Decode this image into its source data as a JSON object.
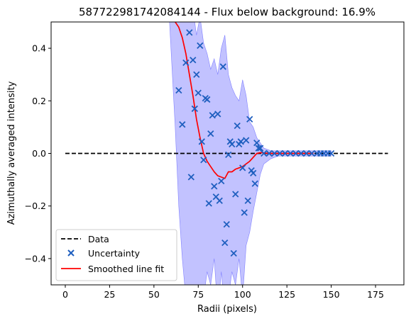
{
  "chart_data": {
    "type": "line",
    "title": "587722981742084144 - Flux below background: 16.9%",
    "xlabel": "Radii (pixels)",
    "ylabel": "Azimuthally averaged intensity",
    "xlim": [
      -8,
      191
    ],
    "ylim": [
      -0.5,
      0.5
    ],
    "x_ticks": [
      0,
      25,
      50,
      75,
      100,
      125,
      150,
      175
    ],
    "y_ticks": [
      -0.4,
      -0.2,
      0.0,
      0.2,
      0.4
    ],
    "y_tick_labels": [
      "−0.4",
      "−0.2",
      "0.0",
      "0.2",
      "0.4"
    ],
    "grid": false,
    "legend_position": "lower-left",
    "legend": [
      "Data",
      "Uncertainty",
      "Smoothed line fit"
    ],
    "colors": {
      "data": "#000000",
      "uncertainty": "#1f5fbf",
      "smoothed": "#ff0000",
      "band": "#b3b3ff"
    },
    "series": [
      {
        "name": "Data",
        "style": "dashed",
        "x": [
          0,
          182
        ],
        "y": [
          0,
          0
        ]
      },
      {
        "name": "Uncertainty",
        "style": "markers-x",
        "x": [
          64,
          66,
          68,
          70,
          71,
          72,
          73,
          74,
          75,
          76,
          77,
          78,
          79,
          80,
          81,
          82,
          83,
          84,
          85,
          86,
          87,
          88,
          89,
          90,
          91,
          92,
          93,
          94,
          95,
          96,
          97,
          98,
          99,
          100,
          101,
          102,
          103,
          104,
          105,
          106,
          107,
          108,
          109,
          110,
          112,
          115,
          118,
          121,
          124,
          127,
          130,
          133,
          136,
          139,
          142,
          144,
          146,
          148,
          150
        ],
        "y": [
          0.24,
          0.11,
          0.345,
          0.46,
          -0.09,
          0.355,
          0.17,
          0.3,
          0.23,
          0.41,
          0.045,
          -0.025,
          0.21,
          0.205,
          -0.19,
          0.075,
          0.145,
          -0.125,
          -0.165,
          0.15,
          -0.18,
          -0.105,
          0.33,
          -0.34,
          -0.27,
          -0.005,
          0.045,
          0.035,
          -0.38,
          -0.155,
          0.105,
          0.035,
          0.045,
          -0.055,
          -0.225,
          0.05,
          -0.18,
          0.13,
          -0.065,
          -0.075,
          -0.115,
          0.04,
          0.02,
          0.02,
          0,
          0,
          0,
          0,
          0,
          0,
          0,
          0,
          0,
          0,
          0,
          0,
          0,
          0,
          0
        ]
      },
      {
        "name": "Smoothed line fit",
        "style": "solid",
        "x": [
          60,
          62,
          64,
          66,
          68,
          70,
          72,
          74,
          76,
          78,
          80,
          82,
          84,
          86,
          88,
          90,
          92,
          94,
          96,
          98,
          100,
          102,
          104,
          106,
          108,
          110,
          112,
          115,
          120,
          125,
          130,
          135,
          140
        ],
        "y": [
          0.54,
          0.5,
          0.48,
          0.44,
          0.38,
          0.3,
          0.22,
          0.13,
          0.06,
          0.0,
          -0.03,
          -0.05,
          -0.07,
          -0.085,
          -0.09,
          -0.095,
          -0.07,
          -0.07,
          -0.06,
          -0.055,
          -0.05,
          -0.04,
          -0.03,
          -0.015,
          0.0,
          0.003,
          0.002,
          0.0,
          0.0,
          0.0,
          0.0,
          0.0,
          0.0
        ]
      }
    ],
    "band": {
      "x": [
        58,
        60,
        62,
        64,
        66,
        68,
        70,
        72,
        74,
        76,
        78,
        80,
        82,
        84,
        86,
        88,
        90,
        92,
        94,
        96,
        98,
        100,
        102,
        104,
        106,
        108,
        110,
        112,
        116,
        120,
        130,
        140,
        150
      ],
      "upper": [
        0.6,
        0.6,
        0.6,
        0.6,
        0.58,
        0.56,
        0.6,
        0.55,
        0.45,
        0.52,
        0.42,
        0.38,
        0.32,
        0.36,
        0.3,
        0.4,
        0.45,
        0.3,
        0.25,
        0.22,
        0.2,
        0.28,
        0.22,
        0.12,
        0.1,
        0.06,
        0.04,
        0.02,
        0.01,
        0.01,
        0.01,
        0.01,
        0.01
      ],
      "lower": [
        0.6,
        0.35,
        0.1,
        -0.2,
        -0.4,
        -0.55,
        -0.6,
        -0.55,
        -0.6,
        -0.5,
        -0.55,
        -0.45,
        -0.5,
        -0.4,
        -0.6,
        -0.45,
        -0.6,
        -0.55,
        -0.45,
        -0.5,
        -0.4,
        -0.55,
        -0.35,
        -0.3,
        -0.22,
        -0.15,
        -0.08,
        -0.04,
        -0.02,
        -0.01,
        -0.01,
        -0.01,
        -0.01
      ]
    }
  }
}
